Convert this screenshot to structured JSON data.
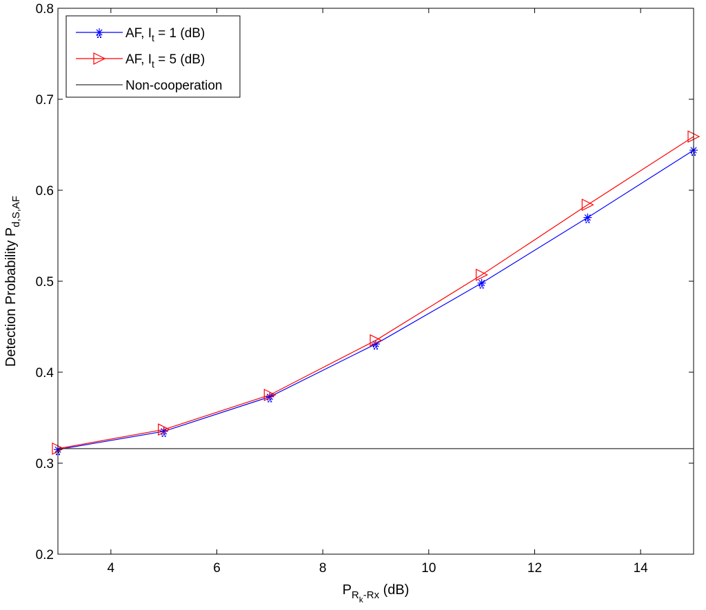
{
  "chart_data": {
    "type": "line",
    "title": "",
    "xlabel": {
      "base": "P",
      "sub": "R",
      "subsub": "k",
      "subrest": "-Rx",
      "unit": " (dB)"
    },
    "ylabel": {
      "base": "Detection Probability P",
      "sub": "d,S,AF"
    },
    "xlim": [
      3,
      15
    ],
    "ylim": [
      0.2,
      0.8
    ],
    "xticks": [
      4,
      6,
      8,
      10,
      12,
      14
    ],
    "yticks": [
      0.2,
      0.3,
      0.4,
      0.5,
      0.6,
      0.7,
      0.8
    ],
    "grid": false,
    "legend_position": "top-left",
    "series": [
      {
        "name": "AF, It = 1 (dB)",
        "legend_parts": {
          "pre": "AF, I",
          "sub": "t",
          "post": " = 1 (dB)"
        },
        "color": "#0000ff",
        "marker": "asterisk",
        "x": [
          3,
          5,
          7,
          9,
          11,
          13,
          15
        ],
        "y": [
          0.315,
          0.335,
          0.373,
          0.431,
          0.498,
          0.57,
          0.644
        ]
      },
      {
        "name": "AF, It = 5 (dB)",
        "legend_parts": {
          "pre": "AF, I",
          "sub": "t",
          "post": " = 5 (dB)"
        },
        "color": "#ff0000",
        "marker": "triangle-right",
        "x": [
          3,
          5,
          7,
          9,
          11,
          13,
          15
        ],
        "y": [
          0.316,
          0.337,
          0.375,
          0.435,
          0.507,
          0.584,
          0.659
        ]
      },
      {
        "name": "Non-cooperation",
        "legend_parts": {
          "pre": "Non-cooperation",
          "sub": "",
          "post": ""
        },
        "color": "#333333",
        "marker": "none",
        "x": [
          3,
          15
        ],
        "y": [
          0.316,
          0.316
        ]
      }
    ]
  }
}
